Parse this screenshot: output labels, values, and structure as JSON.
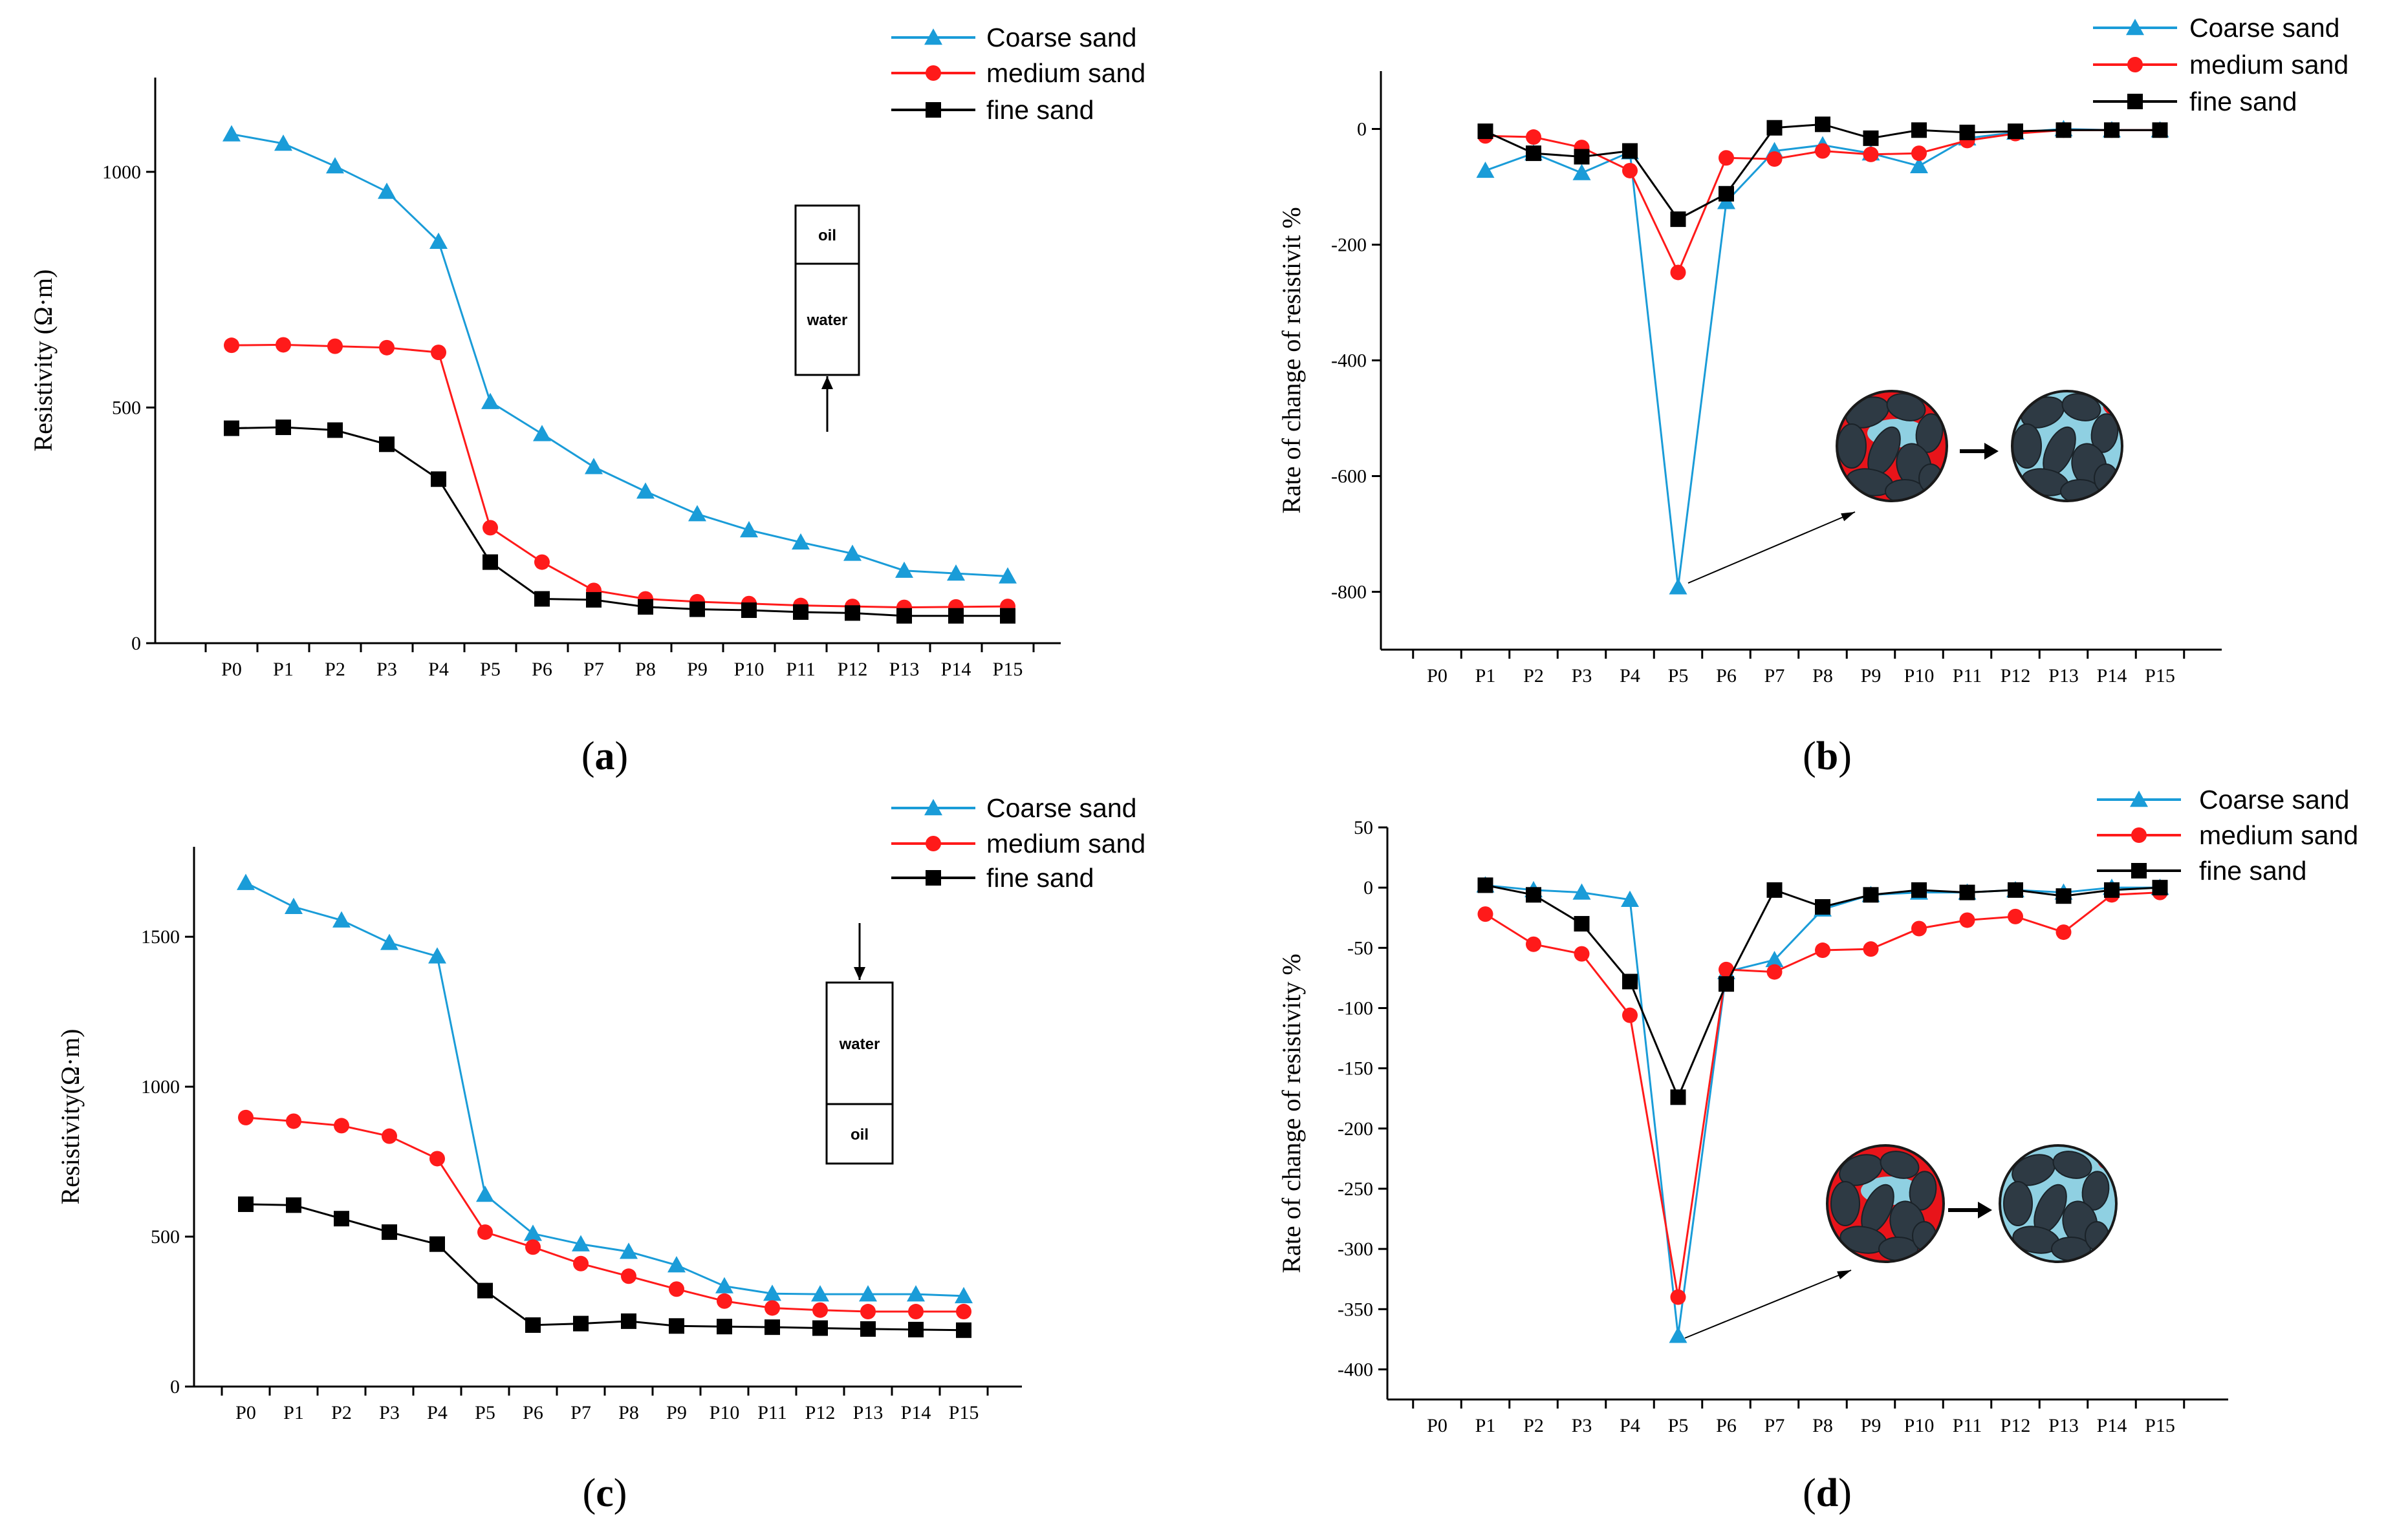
{
  "colors": {
    "coarse": "#1a9cd8",
    "medium": "#ff1a1a",
    "fine": "#000000",
    "axis": "#000000",
    "grain_dark": "#2e3a44",
    "grain_water": "#8fd0e2",
    "grain_oil": "#e8141a"
  },
  "chart_data": [
    {
      "type": "line",
      "panel_label": "a",
      "ylabel": "Resistivity (Ω·m)",
      "categories": [
        "P0",
        "P1",
        "P2",
        "P3",
        "P4",
        "P5",
        "P6",
        "P7",
        "P8",
        "P9",
        "P10",
        "P11",
        "P12",
        "P13",
        "P14",
        "P15"
      ],
      "ylim": [
        0,
        1200
      ],
      "yticks": [
        0,
        500,
        1000
      ],
      "ytick_labels": [
        "0",
        "500",
        "1000"
      ],
      "series": [
        {
          "name": "Coarse sand",
          "marker": "triangle",
          "values": [
            1080,
            1060,
            1012,
            958,
            852,
            512,
            444,
            374,
            322,
            274,
            240,
            214,
            190,
            154,
            148,
            142
          ]
        },
        {
          "name": "medium sand",
          "marker": "circle",
          "values": [
            632,
            633,
            630,
            627,
            617,
            245,
            172,
            112,
            94,
            88,
            84,
            80,
            78,
            76,
            77,
            78
          ]
        },
        {
          "name": "fine sand",
          "marker": "square",
          "values": [
            456,
            458,
            452,
            422,
            348,
            172,
            94,
            92,
            77,
            72,
            70,
            66,
            64,
            58,
            58,
            58
          ]
        }
      ],
      "inset_box": {
        "top": "oil",
        "bottom": "water",
        "arrow": "up"
      }
    },
    {
      "type": "line",
      "panel_label": "b",
      "ylabel": "Rate of change of resistivit %",
      "categories": [
        "P0",
        "P1",
        "P2",
        "P3",
        "P4",
        "P5",
        "P6",
        "P7",
        "P8",
        "P9",
        "P10",
        "P11",
        "P12",
        "P13",
        "P14",
        "P15"
      ],
      "ylim": [
        -900,
        100
      ],
      "yticks": [
        -800,
        -600,
        -400,
        -200,
        0
      ],
      "ytick_labels": [
        "-800",
        "-600",
        "-400",
        "-200",
        "0"
      ],
      "series": [
        {
          "name": "Coarse sand",
          "marker": "triangle",
          "values": [
            null,
            -72,
            -42,
            -76,
            -40,
            -792,
            -126,
            -38,
            -28,
            -42,
            -64,
            -16,
            -6,
            0,
            -2,
            -2
          ]
        },
        {
          "name": "medium sand",
          "marker": "circle",
          "values": [
            null,
            -12,
            -14,
            -32,
            -72,
            -248,
            -50,
            -52,
            -38,
            -44,
            -42,
            -20,
            -8,
            -2,
            -2,
            -2
          ]
        },
        {
          "name": "fine sand",
          "marker": "square",
          "values": [
            null,
            -4,
            -42,
            -48,
            -38,
            -156,
            -112,
            2,
            8,
            -16,
            -2,
            -6,
            -4,
            -2,
            -2,
            -2
          ]
        }
      ]
    },
    {
      "type": "line",
      "panel_label": "c",
      "ylabel": "Resistivity(Ω·m)",
      "categories": [
        "P0",
        "P1",
        "P2",
        "P3",
        "P4",
        "P5",
        "P6",
        "P7",
        "P8",
        "P9",
        "P10",
        "P11",
        "P12",
        "P13",
        "P14",
        "P15"
      ],
      "ylim": [
        0,
        1800
      ],
      "yticks": [
        0,
        500,
        1000,
        1500
      ],
      "ytick_labels": [
        "0",
        "500",
        "1000",
        "1500"
      ],
      "series": [
        {
          "name": "Coarse sand",
          "marker": "triangle",
          "values": [
            1680,
            1600,
            1555,
            1480,
            1435,
            640,
            510,
            475,
            450,
            405,
            335,
            310,
            308,
            308,
            308,
            302
          ]
        },
        {
          "name": "medium sand",
          "marker": "circle",
          "values": [
            897,
            885,
            870,
            835,
            760,
            515,
            465,
            410,
            368,
            325,
            285,
            262,
            255,
            250,
            250,
            250
          ]
        },
        {
          "name": "fine sand",
          "marker": "square",
          "values": [
            608,
            605,
            560,
            515,
            475,
            320,
            205,
            210,
            218,
            202,
            200,
            198,
            195,
            192,
            190,
            188
          ]
        }
      ],
      "inset_box": {
        "top": "water",
        "bottom": "oil",
        "arrow": "down"
      }
    },
    {
      "type": "line",
      "panel_label": "d",
      "ylabel": "Rate of change of resistivity %",
      "categories": [
        "P0",
        "P1",
        "P2",
        "P3",
        "P4",
        "P5",
        "P6",
        "P7",
        "P8",
        "P9",
        "P10",
        "P11",
        "P12",
        "P13",
        "P14",
        "P15"
      ],
      "ylim": [
        -425,
        50
      ],
      "yticks": [
        -400,
        -350,
        -300,
        -250,
        -200,
        -150,
        -100,
        -50,
        0,
        50
      ],
      "ytick_labels": [
        "-400",
        "-350",
        "-300",
        "-250",
        "-200",
        "-150",
        "-100",
        "-50",
        "0",
        "50"
      ],
      "series": [
        {
          "name": "Coarse sand",
          "marker": "triangle",
          "values": [
            null,
            2,
            -2,
            -4,
            -10,
            -372,
            -70,
            -60,
            -18,
            -6,
            -4,
            -4,
            -2,
            -4,
            0,
            0
          ]
        },
        {
          "name": "medium sand",
          "marker": "circle",
          "values": [
            null,
            -22,
            -47,
            -55,
            -106,
            -340,
            -68,
            -70,
            -52,
            -51,
            -34,
            -27,
            -24,
            -37,
            -6,
            -4
          ]
        },
        {
          "name": "fine sand",
          "marker": "square",
          "values": [
            null,
            2,
            -6,
            -30,
            -78,
            -174,
            -80,
            -2,
            -16,
            -6,
            -2,
            -4,
            -2,
            -7,
            -2,
            0
          ]
        }
      ]
    }
  ]
}
